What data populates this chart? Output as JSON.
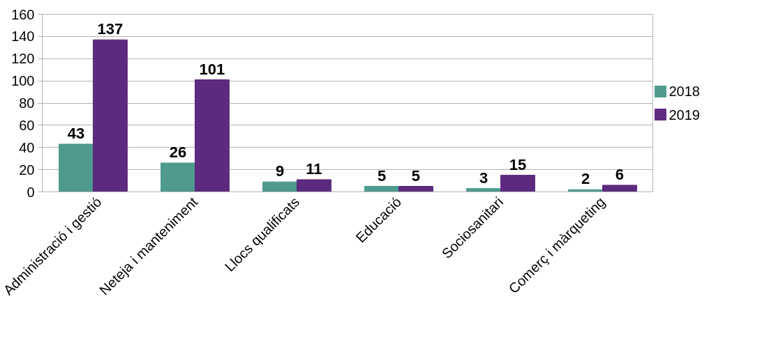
{
  "chart_data": {
    "type": "bar",
    "categories": [
      "Administració i gestió",
      "Neteja i manteniment",
      "Llocs qualificats",
      "Educació",
      "Sociosanitari",
      "Comerç i màrqueting"
    ],
    "series": [
      {
        "name": "2018",
        "color": "#4e9a8e",
        "values": [
          43,
          26,
          9,
          5,
          3,
          2
        ]
      },
      {
        "name": "2019",
        "color": "#5c2a7e",
        "values": [
          137,
          101,
          11,
          5,
          15,
          6
        ]
      }
    ],
    "ylim": [
      0,
      160
    ],
    "yticks": [
      0,
      20,
      40,
      60,
      80,
      100,
      120,
      140,
      160
    ],
    "grid": "y",
    "legend": "right",
    "data_labels": true
  }
}
